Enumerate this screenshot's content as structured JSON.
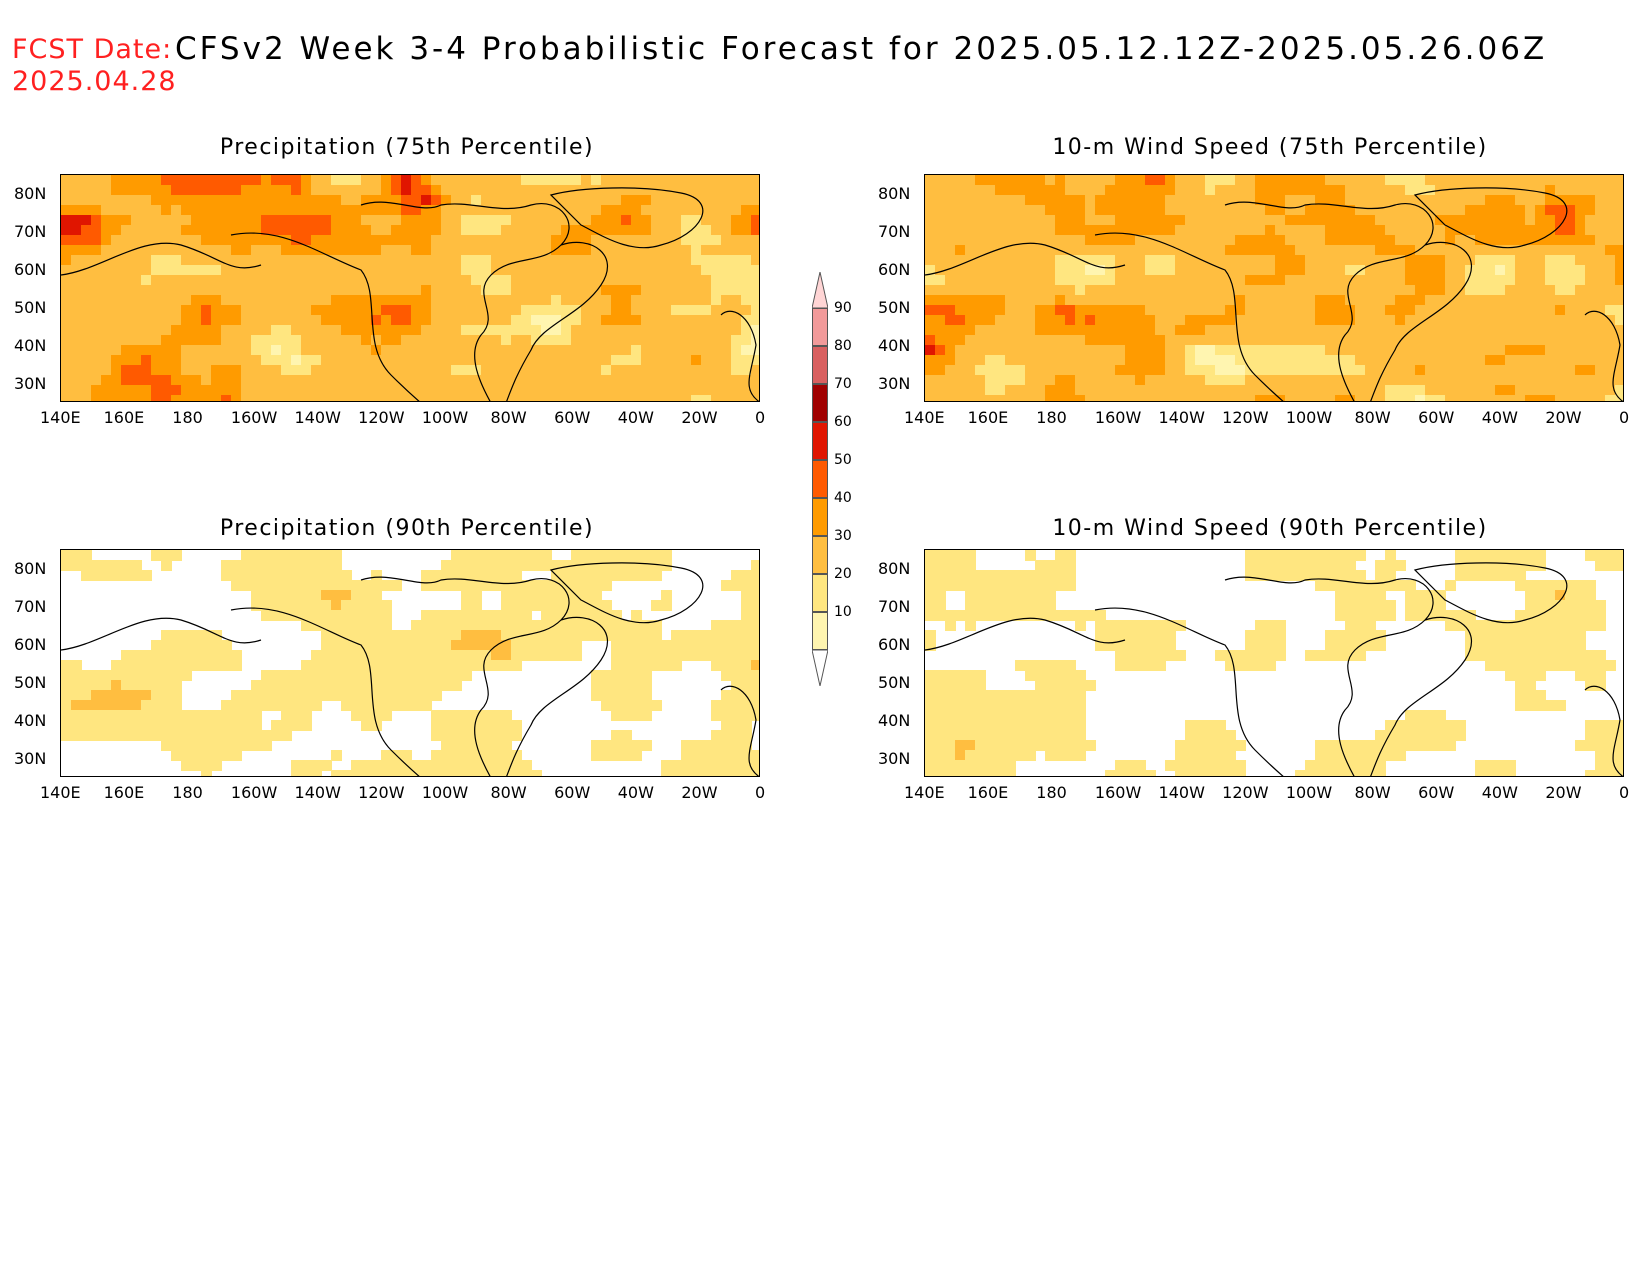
{
  "header": {
    "fcst_label": "FCST Date:",
    "fcst_date": "2025.04.28",
    "title": "CFSv2 Week 3-4 Probabilistic Forecast for 2025.05.12.12Z-2025.05.26.06Z"
  },
  "panels": [
    {
      "title": "Precipitation (75th Percentile)",
      "field": "precipitation",
      "level": "75"
    },
    {
      "title": "10-m Wind Speed (75th Percentile)",
      "field": "wind",
      "level": "75"
    },
    {
      "title": "Precipitation (90th Percentile)",
      "field": "precipitation",
      "level": "90"
    },
    {
      "title": "10-m Wind Speed (90th Percentile)",
      "field": "wind",
      "level": "90"
    }
  ],
  "axes": {
    "lat_labels": [
      "80N",
      "70N",
      "60N",
      "50N",
      "40N",
      "30N"
    ],
    "lon_labels": [
      "140E",
      "160E",
      "180",
      "160W",
      "140W",
      "120W",
      "100W",
      "80W",
      "60W",
      "40W",
      "20W",
      "0"
    ]
  },
  "colorbar": {
    "labels": [
      "90",
      "80",
      "70",
      "60",
      "50",
      "40",
      "30",
      "20",
      "10"
    ],
    "colors": [
      "#ffffff",
      "#fff5b0",
      "#ffe680",
      "#ffbe40",
      "#ff9b00",
      "#ff5a00",
      "#e01500",
      "#a00000",
      "#d96060",
      "#f29a9a",
      "#ffd5d5"
    ]
  }
}
